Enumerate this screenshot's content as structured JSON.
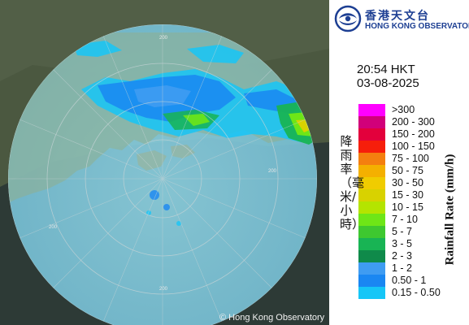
{
  "header": {
    "org_name_cn": "香港天文台",
    "org_name_en": "HONG KONG OBSERVATORY"
  },
  "timestamp": {
    "time": "20:54 HKT",
    "date": "03-08-2025"
  },
  "legend": {
    "axis_label_cn": "降雨率（毫米/小時）",
    "axis_label_en": "Rainfall Rate (mm/h)",
    "items": [
      {
        "label": ">300",
        "color": "#ff00ff"
      },
      {
        "label": "200 - 300",
        "color": "#d1007a"
      },
      {
        "label": "150 - 200",
        "color": "#e3003c"
      },
      {
        "label": "100 - 150",
        "color": "#f61e0b"
      },
      {
        "label": "75 - 100",
        "color": "#f47f0f"
      },
      {
        "label": "50 - 75",
        "color": "#f4b000"
      },
      {
        "label": "30 - 50",
        "color": "#f0cc00"
      },
      {
        "label": "15 - 30",
        "color": "#d8d200"
      },
      {
        "label": "10 - 15",
        "color": "#b4e400"
      },
      {
        "label": "7 - 10",
        "color": "#6ee617"
      },
      {
        "label": "5 - 7",
        "color": "#3ec830"
      },
      {
        "label": "3 - 5",
        "color": "#18b454"
      },
      {
        "label": "2 - 3",
        "color": "#0f8a4a"
      },
      {
        "label": "1 - 2",
        "color": "#3f9cf2"
      },
      {
        "label": "0.50 - 1",
        "color": "#1a87f2"
      },
      {
        "label": "0.15 - 0.50",
        "color": "#16c6f7"
      }
    ]
  },
  "map": {
    "range_ring_label": "200",
    "copyright": "© Hong Kong Observatory"
  },
  "colors": {
    "land": "#4d5b3f",
    "sea_outside": "#26302a",
    "radar_disc": "#7fc9dc",
    "brand": "#1d3f93"
  }
}
